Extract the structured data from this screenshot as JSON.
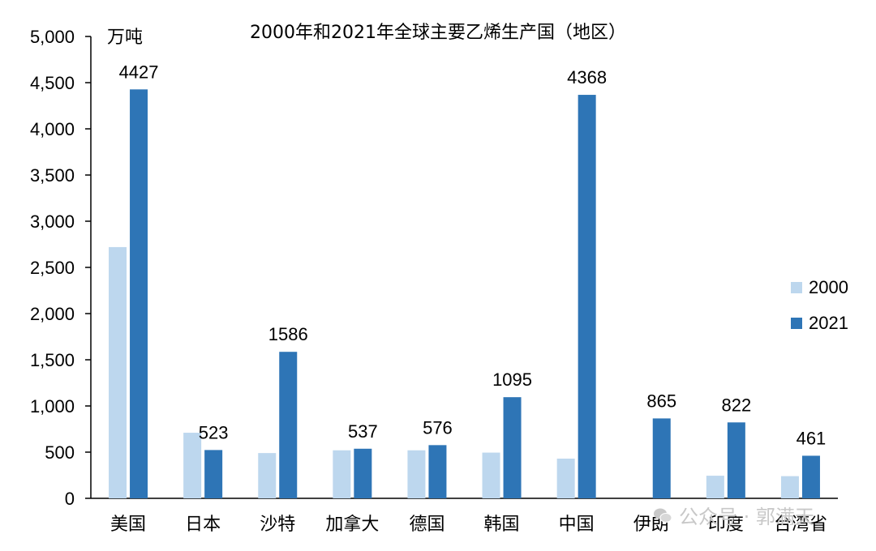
{
  "chart_data": {
    "type": "bar",
    "title": "2000年和2021年全球主要乙烯生产国（地区）",
    "ylabel": "万吨",
    "ylim": [
      0,
      5000
    ],
    "yticks": [
      "0",
      "500",
      "1,000",
      "1,500",
      "2,000",
      "2,500",
      "3,000",
      "3,500",
      "4,000",
      "4,500",
      "5,000"
    ],
    "categories": [
      "美国",
      "日本",
      "沙特",
      "加拿大",
      "德国",
      "韩国",
      "中国",
      "伊朗",
      "印度",
      "台湾省"
    ],
    "series": [
      {
        "name": "2000",
        "color": "#bdd7ee",
        "values": [
          2720,
          710,
          490,
          520,
          520,
          495,
          430,
          0,
          245,
          240
        ]
      },
      {
        "name": "2021",
        "color": "#2e75b6",
        "values": [
          4427,
          523,
          1586,
          537,
          576,
          1095,
          4368,
          865,
          822,
          461
        ]
      }
    ],
    "data_labels": [
      "4427",
      "523",
      "1586",
      "537",
      "576",
      "1095",
      "4368",
      "865",
      "822",
      "461"
    ],
    "legend_position": "right",
    "grid": false
  },
  "watermark": {
    "text": "公众号 · 郭满天",
    "icon": "wechat-icon"
  }
}
